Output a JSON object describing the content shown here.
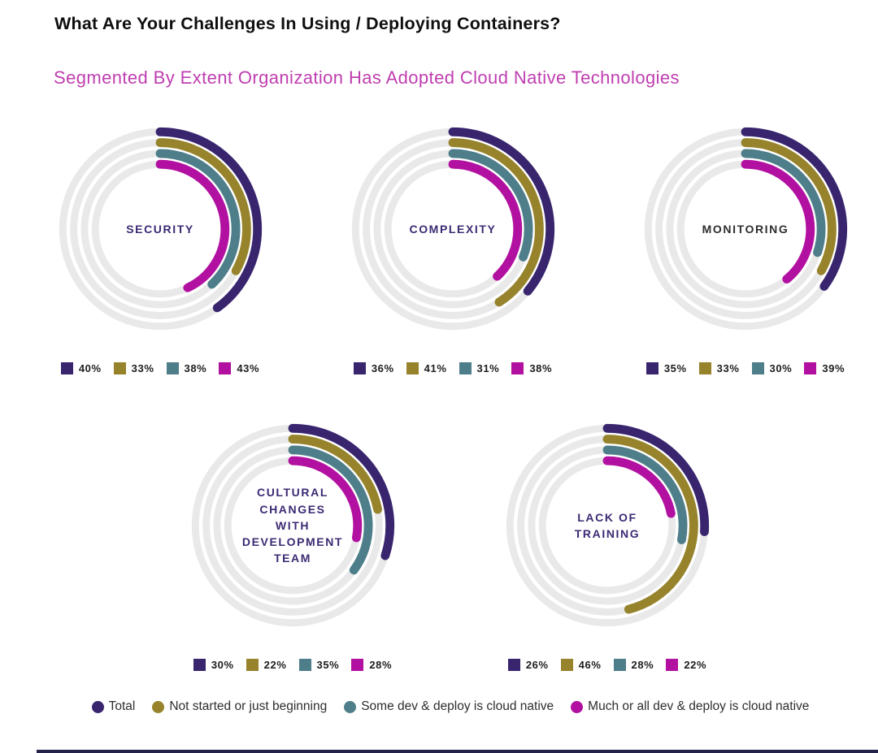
{
  "header": {
    "title": "What Are Your Challenges In Using / Deploying Containers?",
    "subtitle": "Segmented By Extent Organization Has Adopted Cloud Native Technologies",
    "subtitle_color": "#bf3eb0"
  },
  "colors": {
    "series": [
      "#38256e",
      "#96832c",
      "#4e7e89",
      "#b210a0"
    ],
    "ring_background": "#e9e9e9",
    "bottom_rule": "#22224a"
  },
  "chart_data": {
    "type": "radial-bar",
    "unit": "%",
    "start_angle_deg": 0,
    "direction": "clockwise",
    "series": [
      "Total",
      "Not started or just beginning",
      "Some dev & deploy is cloud native",
      "Much or all dev & deploy is cloud native"
    ],
    "charts": [
      {
        "label": "SECURITY",
        "label_color": "#3d2a73",
        "values": [
          40,
          33,
          38,
          43
        ],
        "value_labels": [
          "40%",
          "33%",
          "38%",
          "43%"
        ]
      },
      {
        "label": "COMPLEXITY",
        "label_color": "#3d2a73",
        "values": [
          36,
          41,
          31,
          38
        ],
        "value_labels": [
          "36%",
          "41%",
          "31%",
          "38%"
        ]
      },
      {
        "label": "MONITORING",
        "label_color": "#2e2e2e",
        "values": [
          35,
          33,
          30,
          39
        ],
        "value_labels": [
          "35%",
          "33%",
          "30%",
          "39%"
        ]
      },
      {
        "label": "CULTURAL\nCHANGES\nWITH\nDEVELOPMENT\nTEAM",
        "label_color": "#3d2a73",
        "values": [
          30,
          22,
          35,
          28
        ],
        "value_labels": [
          "30%",
          "22%",
          "35%",
          "28%"
        ]
      },
      {
        "label": "LACK OF\nTRAINING",
        "label_color": "#3d2a73",
        "values": [
          26,
          46,
          28,
          22
        ],
        "value_labels": [
          "26%",
          "46%",
          "28%",
          "22%"
        ]
      }
    ]
  },
  "legend": {
    "items": [
      {
        "label": "Total"
      },
      {
        "label": "Not started or just beginning"
      },
      {
        "label": "Some dev & deploy is cloud native"
      },
      {
        "label": "Much or all dev & deploy is cloud native"
      }
    ]
  }
}
